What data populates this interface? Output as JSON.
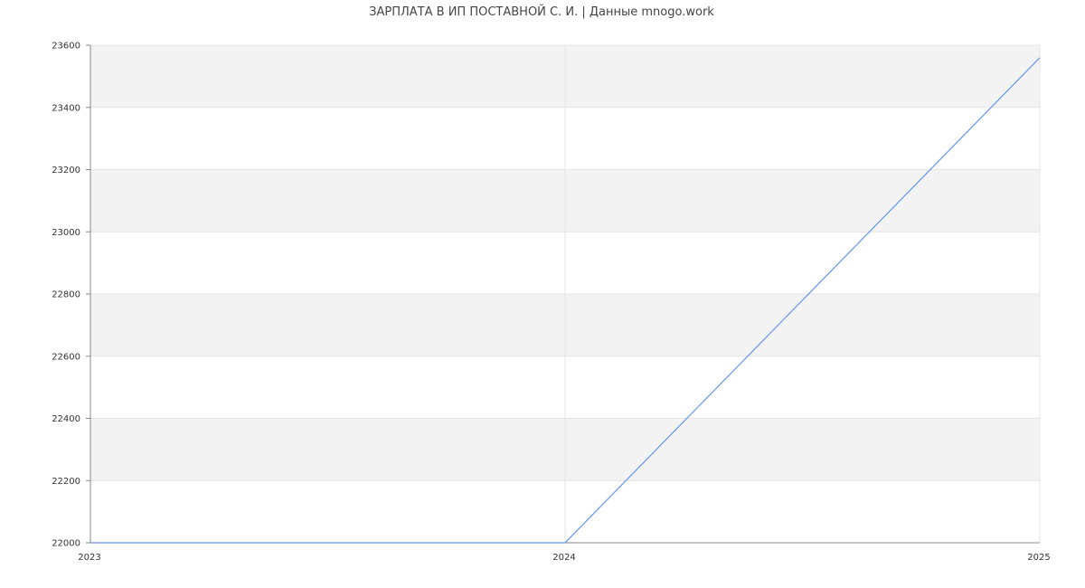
{
  "chart_data": {
    "type": "line",
    "title": "ЗАРПЛАТА В ИП ПОСТАВНОЙ С. И. | Данные mnogo.work",
    "xlabel": "",
    "ylabel": "",
    "x": [
      2023,
      2024,
      2025
    ],
    "series": [
      {
        "values": [
          22000,
          22000,
          23560
        ],
        "color": "#6495ed"
      }
    ],
    "xlim": [
      2023,
      2025
    ],
    "ylim": [
      22000,
      23600
    ],
    "xticks": [
      "2023",
      "2024",
      "2025"
    ],
    "yticks": [
      "22000",
      "22200",
      "22400",
      "22600",
      "22800",
      "23000",
      "23200",
      "23400",
      "23600"
    ],
    "grid": true,
    "band_color": "#f3f3f3",
    "legend": "none"
  }
}
